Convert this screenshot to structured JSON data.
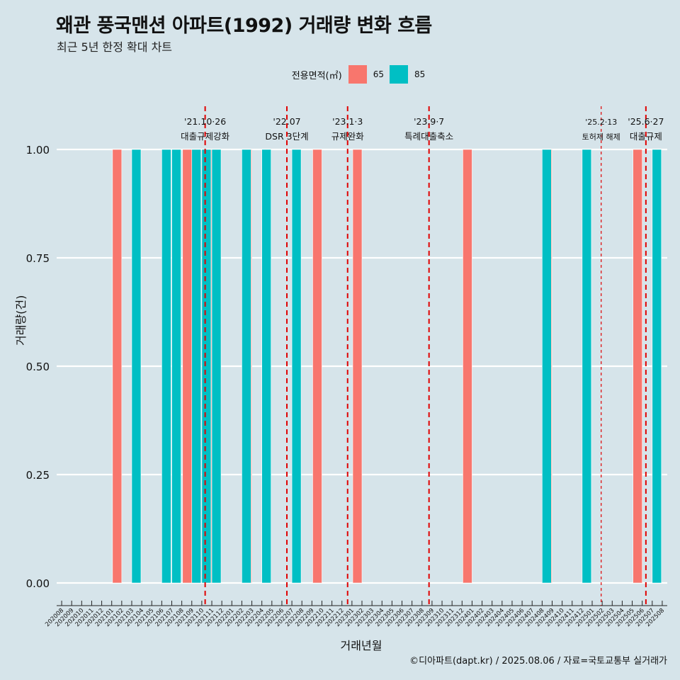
{
  "title": "왜관 풍국맨션 아파트(1992) 거래량 변화 흐름",
  "subtitle": "최근 5년 한정 확대 차트",
  "caption": "©디아파트(dapt.kr) / 2025.08.06 / 자료=국토교통부 실거래가",
  "colors": {
    "background": "#d6e4ea",
    "s65": "#f8766d",
    "s85": "#00bfc4",
    "vline": "#e00000"
  },
  "chart_data": {
    "type": "bar",
    "title": "왜관 풍국맨션 아파트(1992) 거래량 변화 흐름",
    "xlabel": "거래년월",
    "ylabel": "거래량(건)",
    "ylim": [
      0,
      1
    ],
    "yticks": [
      "0.00",
      "0.25",
      "0.50",
      "0.75",
      "1.00"
    ],
    "legend_title": "전용면적(㎡)",
    "legend_position": "top",
    "grid": true,
    "categories": [
      "202008",
      "202009",
      "202010",
      "202011",
      "202012",
      "202101",
      "202102",
      "202103",
      "202104",
      "202105",
      "202106",
      "202107",
      "202108",
      "202109",
      "202110",
      "202111",
      "202112",
      "202201",
      "202202",
      "202203",
      "202204",
      "202205",
      "202206",
      "202207",
      "202208",
      "202209",
      "202210",
      "202211",
      "202212",
      "202301",
      "202302",
      "202303",
      "202304",
      "202305",
      "202306",
      "202307",
      "202308",
      "202309",
      "202310",
      "202311",
      "202312",
      "202401",
      "202402",
      "202403",
      "202404",
      "202405",
      "202406",
      "202407",
      "202408",
      "202409",
      "202410",
      "202411",
      "202412",
      "202501",
      "202502",
      "202503",
      "202504",
      "202505",
      "202506",
      "202507",
      "202508"
    ],
    "series": [
      {
        "name": "65",
        "color": "#f8766d",
        "values": [
          0,
          0,
          0,
          0,
          0,
          0,
          1,
          0,
          0,
          0,
          0,
          0,
          0,
          1,
          0,
          1,
          0,
          0,
          0,
          1,
          0,
          0,
          0,
          0,
          0,
          0,
          1,
          0,
          0,
          0,
          1,
          0,
          0,
          0,
          0,
          0,
          0,
          0,
          0,
          0,
          0,
          1,
          0,
          0,
          0,
          0,
          0,
          0,
          0,
          1,
          0,
          0,
          0,
          0,
          0,
          0,
          0,
          0,
          1,
          0,
          0
        ]
      },
      {
        "name": "85",
        "color": "#00bfc4",
        "values": [
          0,
          0,
          0,
          0,
          0,
          0,
          0,
          1,
          0,
          0,
          1,
          1,
          0,
          1,
          1,
          1,
          0,
          0,
          1,
          0,
          1,
          0,
          0,
          1,
          0,
          0,
          0,
          0,
          0,
          0,
          0,
          0,
          0,
          0,
          0,
          0,
          0,
          0,
          0,
          0,
          0,
          0,
          0,
          0,
          0,
          0,
          0,
          0,
          1,
          0,
          0,
          0,
          1,
          0,
          0,
          0,
          0,
          0,
          0,
          1,
          0
        ]
      }
    ],
    "annotations": [
      {
        "date": "2021-10-26",
        "line1": "'21.10·26",
        "line2": "대출규제강화"
      },
      {
        "date": "2022-07",
        "line1": "'22.07",
        "line2": "DSR 3단계"
      },
      {
        "date": "2023-01-03",
        "line1": "'23.1·3",
        "line2": "규제완화"
      },
      {
        "date": "2023-09-07",
        "line1": "'23.9·7",
        "line2": "특례대출축소"
      },
      {
        "date": "2025-02-13",
        "line1": "'25.2·13",
        "line2": "토허제 해제"
      },
      {
        "date": "2025-06-27",
        "line1": "'25.6·27",
        "line2": "대출규제"
      }
    ]
  }
}
